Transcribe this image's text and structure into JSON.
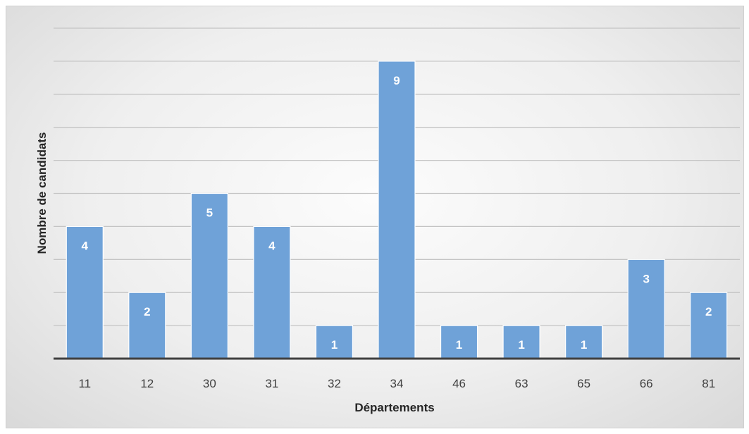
{
  "chart_data": {
    "type": "bar",
    "categories": [
      "11",
      "12",
      "30",
      "31",
      "32",
      "34",
      "46",
      "63",
      "65",
      "66",
      "81"
    ],
    "values": [
      4,
      2,
      5,
      4,
      1,
      9,
      1,
      1,
      1,
      3,
      2
    ],
    "title": "",
    "xlabel": "Départements",
    "ylabel": "Nombre de candidats",
    "ylim": [
      0,
      10
    ],
    "grid": true,
    "legend": "none",
    "bar_color": "#6FA2D8",
    "data_labels": true
  }
}
